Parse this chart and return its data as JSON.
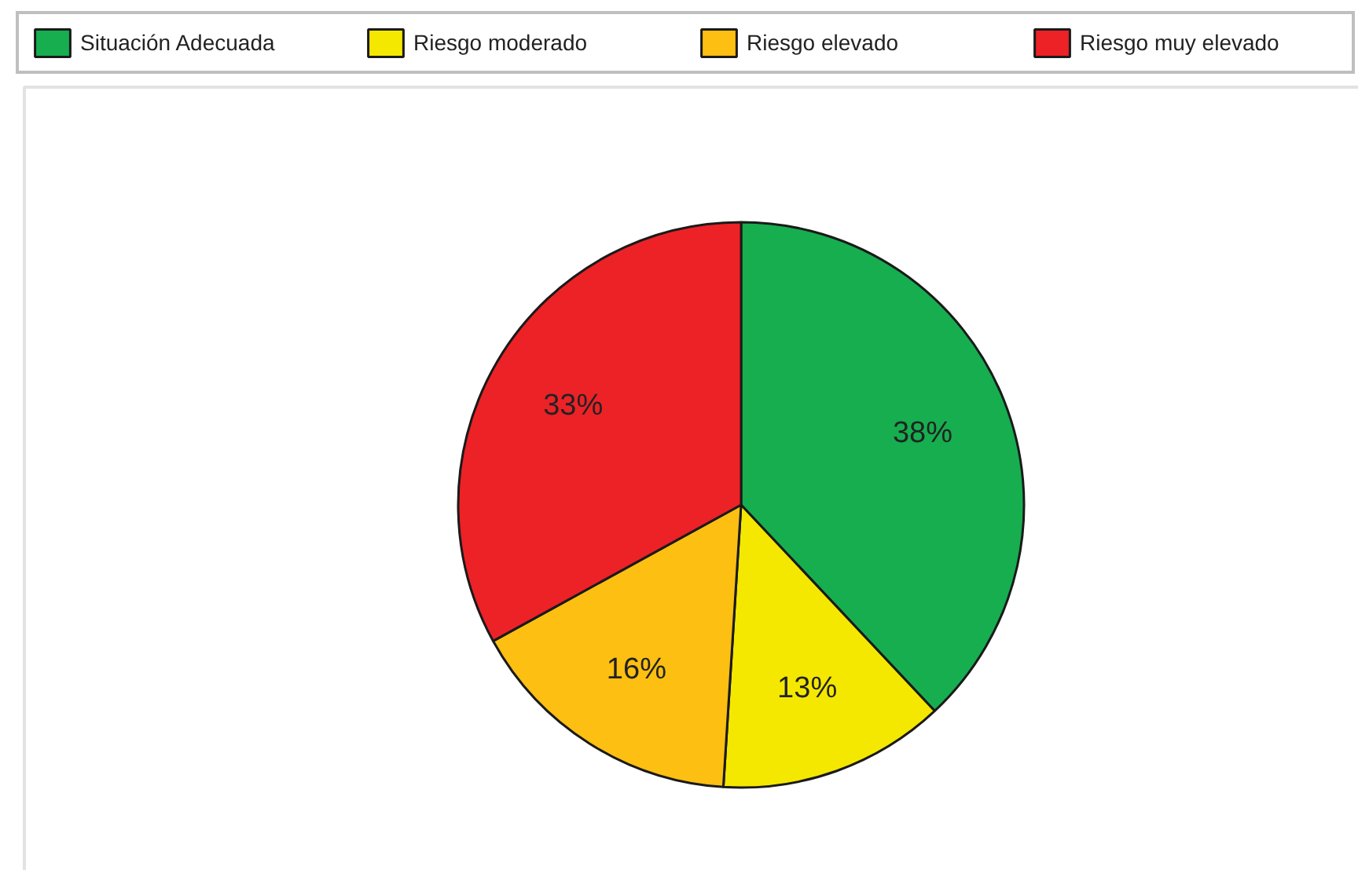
{
  "chart_data": {
    "type": "pie",
    "categories": [
      "Situación Adecuada",
      "Riesgo moderado",
      "Riesgo elevado",
      "Riesgo muy elevado"
    ],
    "values": [
      38,
      13,
      16,
      33
    ],
    "colors": [
      "#16ae4f",
      "#f5e800",
      "#fcbf12",
      "#ec2227"
    ],
    "value_labels": [
      "38%",
      "13%",
      "16%",
      "33%"
    ],
    "legend": "top"
  }
}
